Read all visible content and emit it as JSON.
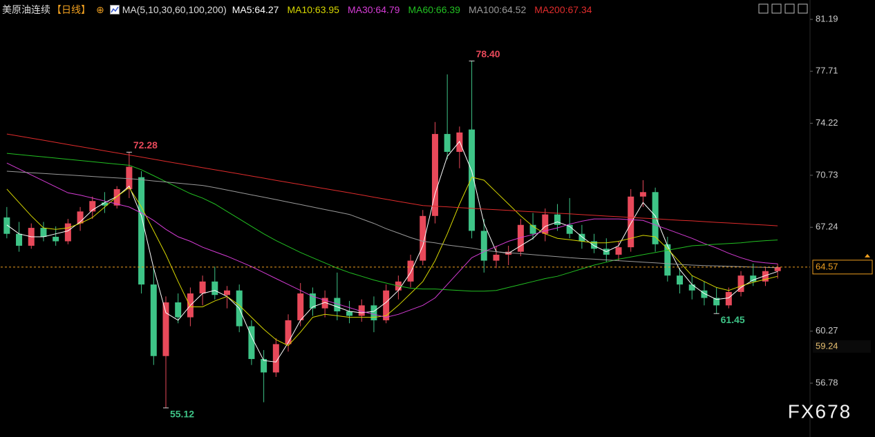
{
  "chart_data": {
    "type": "candlestick",
    "title": "美原油连续",
    "period": "【日线】",
    "add_icon": "⊕",
    "ma_label": "MA(5,10,30,60,100,200)",
    "watermark": "FX678",
    "up_color": "#e8495a",
    "down_color": "#3ec487",
    "ylim": [
      53.77,
      82.49
    ],
    "yticks": [
      81.19,
      77.71,
      74.22,
      70.73,
      67.24,
      60.27,
      56.78
    ],
    "last_price": 64.57,
    "last_price_color": "#f0a020",
    "price_marker": 59.24,
    "open": [
      67.9,
      66.8,
      66.0,
      67.2,
      66.6,
      66.3,
      67.5,
      68.3,
      68.9,
      68.7,
      69.8,
      70.6,
      63.4,
      58.6,
      62.2,
      61.2,
      62.8,
      63.6,
      62.7,
      63.0,
      60.6,
      58.4,
      57.5,
      59.4,
      61.0,
      62.8,
      61.8,
      62.5,
      61.6,
      61.3,
      62.0,
      61.0,
      63.0,
      63.6,
      65.0,
      68.0,
      73.5,
      72.3,
      73.8,
      67.0,
      65.0,
      65.4,
      65.6,
      67.4,
      66.8,
      68.1,
      67.4,
      66.8,
      66.3,
      65.8,
      65.4,
      65.9,
      69.3,
      69.6,
      66.1,
      64.0,
      63.4,
      63.0,
      62.5,
      62.0,
      62.9,
      64.0,
      63.6,
      64.3
    ],
    "high": [
      68.6,
      67.6,
      67.5,
      67.6,
      67.3,
      67.8,
      68.6,
      69.3,
      69.6,
      70.0,
      72.28,
      71.0,
      64.5,
      62.6,
      62.8,
      63.2,
      64.0,
      64.6,
      63.3,
      63.4,
      61.0,
      59.0,
      59.8,
      61.4,
      63.5,
      63.2,
      63.0,
      64.2,
      62.3,
      62.4,
      62.6,
      63.4,
      64.0,
      65.4,
      68.4,
      74.3,
      77.5,
      74.0,
      78.4,
      67.8,
      66.0,
      66.0,
      67.8,
      68.2,
      68.5,
      68.8,
      69.2,
      67.4,
      66.8,
      66.5,
      66.3,
      69.8,
      70.4,
      69.9,
      66.6,
      64.5,
      64.0,
      63.6,
      63.2,
      63.2,
      64.3,
      64.8,
      64.6,
      64.8
    ],
    "low": [
      66.5,
      65.6,
      65.8,
      66.3,
      66.0,
      66.1,
      67.0,
      67.8,
      68.2,
      68.5,
      69.2,
      62.8,
      58.0,
      55.12,
      60.8,
      60.6,
      62.0,
      62.4,
      61.8,
      60.2,
      58.0,
      55.5,
      57.2,
      58.9,
      60.6,
      61.3,
      61.2,
      61.0,
      60.8,
      60.9,
      60.2,
      60.8,
      62.4,
      63.2,
      64.7,
      67.5,
      71.8,
      71.2,
      66.5,
      64.2,
      64.5,
      64.7,
      65.3,
      66.4,
      66.3,
      67.0,
      66.5,
      65.8,
      65.5,
      64.9,
      65.0,
      65.6,
      68.6,
      65.6,
      63.6,
      62.8,
      62.4,
      62.0,
      61.45,
      61.8,
      62.6,
      63.3,
      63.3,
      63.8
    ],
    "close": [
      66.8,
      66.0,
      67.2,
      66.6,
      66.3,
      67.5,
      68.3,
      69.0,
      68.7,
      69.8,
      71.3,
      63.4,
      58.6,
      62.2,
      61.2,
      62.8,
      63.6,
      62.7,
      63.0,
      60.6,
      58.4,
      57.5,
      59.4,
      61.0,
      62.8,
      61.8,
      62.5,
      61.6,
      61.3,
      62.0,
      61.0,
      63.0,
      63.6,
      65.0,
      68.0,
      73.5,
      72.3,
      73.6,
      67.0,
      65.0,
      65.4,
      65.6,
      67.4,
      66.8,
      68.1,
      67.4,
      66.8,
      66.3,
      65.8,
      65.4,
      65.9,
      69.3,
      69.6,
      66.1,
      64.0,
      63.4,
      63.0,
      62.5,
      62.0,
      62.9,
      64.0,
      63.6,
      64.3,
      64.57
    ],
    "series": [
      {
        "name": "MA5:64.27",
        "color": "#ffffff",
        "values": [
          67.4,
          66.8,
          66.6,
          66.6,
          66.8,
          67.0,
          67.6,
          68.4,
          68.9,
          69.3,
          70.0,
          68.0,
          64.5,
          61.5,
          61.0,
          62.0,
          62.8,
          63.0,
          62.6,
          61.8,
          59.9,
          58.3,
          58.2,
          59.5,
          61.0,
          61.9,
          62.2,
          61.9,
          61.6,
          61.5,
          61.6,
          62.2,
          63.0,
          64.2,
          66.0,
          69.5,
          72.0,
          73.0,
          71.0,
          67.5,
          65.6,
          65.5,
          66.0,
          66.5,
          67.3,
          67.6,
          67.3,
          66.6,
          66.0,
          65.6,
          66.0,
          67.5,
          68.9,
          68.0,
          66.0,
          64.4,
          63.4,
          62.8,
          62.4,
          62.5,
          63.2,
          63.7,
          64.0,
          64.27
        ]
      },
      {
        "name": "MA10:63.95",
        "color": "#d8d800",
        "values": [
          69.8,
          68.9,
          68.0,
          67.2,
          67.1,
          67.2,
          67.5,
          67.9,
          68.6,
          69.3,
          69.9,
          68.6,
          67.0,
          65.4,
          63.6,
          61.9,
          61.9,
          62.3,
          62.6,
          62.0,
          61.2,
          60.4,
          59.7,
          59.3,
          60.2,
          61.2,
          61.4,
          61.3,
          61.2,
          61.2,
          61.2,
          61.3,
          62.0,
          62.8,
          63.6,
          65.0,
          66.8,
          68.8,
          70.6,
          70.4,
          69.6,
          68.8,
          68.0,
          67.3,
          66.8,
          66.5,
          66.4,
          66.3,
          66.2,
          66.2,
          66.3,
          66.5,
          66.7,
          66.6,
          65.8,
          64.9,
          64.0,
          63.6,
          63.2,
          63.0,
          63.3,
          63.55,
          63.75,
          63.95
        ]
      },
      {
        "name": "MA30:64.79",
        "color": "#d63cd6",
        "values": [
          71.55,
          71.15,
          70.75,
          70.35,
          69.95,
          69.55,
          69.4,
          69.2,
          69.0,
          68.8,
          68.6,
          68.2,
          67.7,
          67.1,
          66.6,
          66.3,
          65.9,
          65.6,
          65.3,
          64.95,
          64.6,
          64.2,
          63.8,
          63.4,
          63.0,
          62.6,
          62.35,
          62.1,
          61.85,
          61.6,
          61.4,
          61.2,
          61.4,
          61.7,
          62.0,
          62.5,
          63.4,
          64.3,
          65.2,
          65.6,
          65.95,
          66.3,
          66.55,
          66.75,
          67.0,
          67.2,
          67.45,
          67.65,
          67.8,
          67.8,
          67.8,
          67.75,
          67.7,
          67.4,
          67.1,
          66.8,
          66.5,
          66.15,
          65.85,
          65.5,
          65.2,
          64.95,
          64.85,
          64.79
        ]
      },
      {
        "name": "MA60:66.39",
        "color": "#22c022",
        "values": [
          72.2,
          72.12,
          72.04,
          71.96,
          71.88,
          71.8,
          71.72,
          71.64,
          71.56,
          71.48,
          71.4,
          71.1,
          70.7,
          70.3,
          69.9,
          69.5,
          69.2,
          68.8,
          68.3,
          67.8,
          67.3,
          66.8,
          66.35,
          65.95,
          65.55,
          65.2,
          64.85,
          64.5,
          64.2,
          63.95,
          63.7,
          63.5,
          63.3,
          63.15,
          63.1,
          63.1,
          63.05,
          63.0,
          62.95,
          62.95,
          63.0,
          63.2,
          63.4,
          63.6,
          63.8,
          63.95,
          64.2,
          64.45,
          64.7,
          64.9,
          65.1,
          65.25,
          65.4,
          65.55,
          65.7,
          65.85,
          66.0,
          66.05,
          66.1,
          66.15,
          66.2,
          66.28,
          66.34,
          66.39
        ]
      },
      {
        "name": "MA100:64.52",
        "color": "#9a9a9a",
        "values": [
          71.0,
          70.95,
          70.9,
          70.85,
          70.8,
          70.75,
          70.7,
          70.65,
          70.6,
          70.55,
          70.5,
          70.43,
          70.35,
          70.28,
          70.2,
          70.12,
          70.05,
          69.9,
          69.74,
          69.58,
          69.42,
          69.26,
          69.1,
          68.93,
          68.77,
          68.6,
          68.43,
          68.27,
          68.1,
          67.8,
          67.5,
          67.15,
          66.85,
          66.55,
          66.3,
          66.2,
          66.05,
          65.95,
          65.85,
          65.7,
          65.6,
          65.53,
          65.47,
          65.4,
          65.33,
          65.27,
          65.2,
          65.14,
          65.1,
          65.05,
          65.0,
          64.95,
          64.9,
          64.85,
          64.8,
          64.75,
          64.7,
          64.67,
          64.65,
          64.62,
          64.6,
          64.57,
          64.55,
          64.52
        ]
      },
      {
        "name": "MA200:67.34",
        "color": "#e02c2c",
        "values": [
          73.5,
          73.36,
          73.22,
          73.08,
          72.94,
          72.79,
          72.65,
          72.51,
          72.37,
          72.23,
          72.09,
          71.95,
          71.81,
          71.66,
          71.52,
          71.38,
          71.24,
          71.1,
          70.96,
          70.82,
          70.68,
          70.54,
          70.39,
          70.25,
          70.11,
          69.97,
          69.83,
          69.69,
          69.55,
          69.41,
          69.26,
          69.12,
          68.98,
          68.84,
          68.7,
          68.65,
          68.61,
          68.56,
          68.51,
          68.46,
          68.42,
          68.37,
          68.32,
          68.28,
          68.23,
          68.18,
          68.14,
          68.09,
          68.04,
          67.99,
          67.95,
          67.9,
          67.85,
          67.81,
          67.76,
          67.71,
          67.67,
          67.62,
          67.57,
          67.53,
          67.48,
          67.43,
          67.39,
          67.34
        ]
      }
    ],
    "extreme_labels": [
      72.28,
      {
        "value": 78.4,
        "label": "78.40"
      },
      55.12,
      61.45
    ]
  }
}
